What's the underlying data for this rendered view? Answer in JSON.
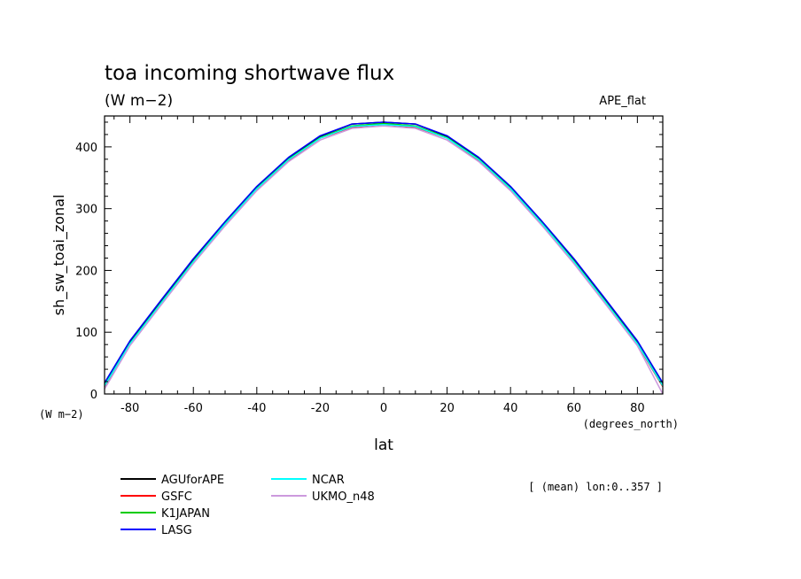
{
  "chart_data": {
    "type": "line",
    "title": "toa incoming shortwave flux",
    "subtitle": "(W m−2)",
    "experiment": "APE_flat",
    "xlabel": "lat",
    "ylabel": "sh_sw_toai_zonal",
    "x_units": "(degrees_north)",
    "y_units": "(W m−2)",
    "xlim": [
      -88,
      88
    ],
    "ylim": [
      0,
      450
    ],
    "xticks": [
      -80,
      -60,
      -40,
      -20,
      0,
      20,
      40,
      60,
      80
    ],
    "yticks": [
      0,
      100,
      200,
      300,
      400
    ],
    "grid": false,
    "legend_position": "bottom-left",
    "note": "[ (mean) lon:0..357 ]",
    "x": [
      -88,
      -80,
      -70,
      -60,
      -50,
      -40,
      -30,
      -20,
      -10,
      0,
      10,
      20,
      30,
      40,
      50,
      60,
      70,
      80,
      88
    ],
    "series": [
      {
        "name": "AGUforAPE",
        "color": "#000000",
        "values": [
          17,
          85,
          152,
          218,
          278,
          335,
          382,
          417,
          437,
          440,
          437,
          417,
          382,
          335,
          278,
          218,
          152,
          85,
          17
        ]
      },
      {
        "name": "GSFC",
        "color": "#ff0000",
        "values": [
          12,
          80,
          147,
          213,
          274,
          331,
          378,
          414,
          432,
          436,
          432,
          414,
          378,
          331,
          274,
          213,
          147,
          80,
          12
        ]
      },
      {
        "name": "K1JAPAN",
        "color": "#00cc00",
        "values": [
          14,
          82,
          149,
          215,
          276,
          333,
          380,
          415,
          434,
          438,
          434,
          415,
          380,
          333,
          276,
          215,
          149,
          82,
          14
        ]
      },
      {
        "name": "LASG",
        "color": "#0000ff",
        "values": [
          18,
          86,
          153,
          219,
          279,
          336,
          383,
          418,
          437,
          440,
          437,
          418,
          383,
          336,
          279,
          219,
          153,
          86,
          18
        ]
      },
      {
        "name": "NCAR",
        "color": "#00ffff",
        "values": [
          13,
          81,
          148,
          214,
          275,
          332,
          379,
          414,
          433,
          436,
          433,
          414,
          379,
          332,
          275,
          214,
          148,
          81,
          13
        ]
      },
      {
        "name": "UKMO_n48",
        "color": "#cc99dd",
        "values": [
          8,
          78,
          145,
          211,
          272,
          329,
          376,
          411,
          430,
          434,
          430,
          411,
          376,
          329,
          272,
          211,
          145,
          78,
          0
        ]
      }
    ]
  }
}
